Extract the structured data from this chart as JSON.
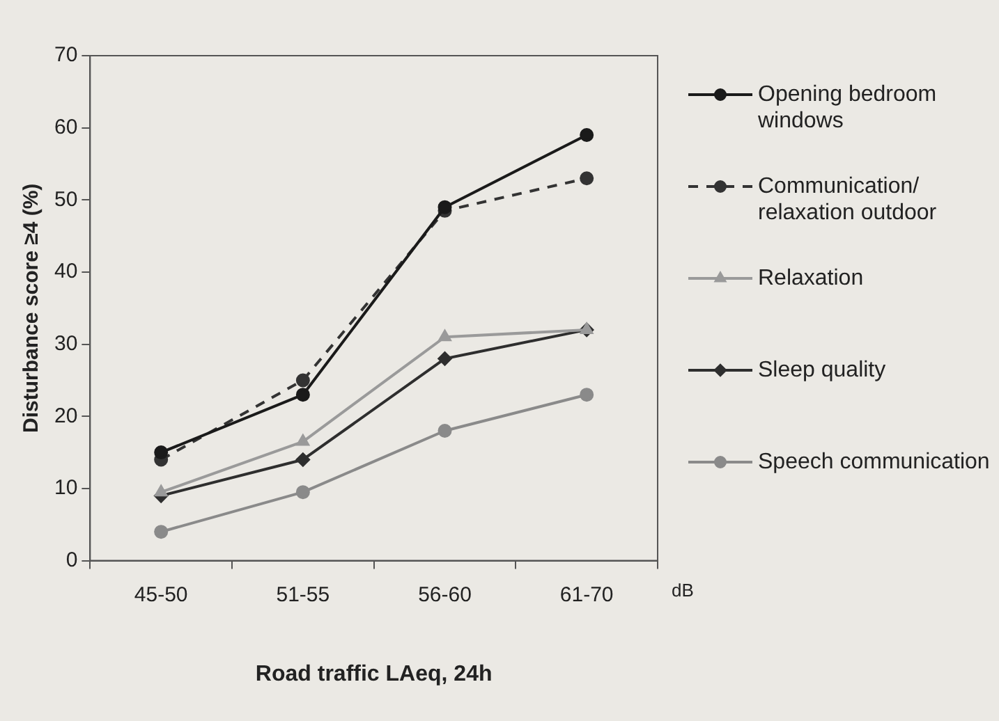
{
  "chart_data": {
    "type": "line",
    "xlabel": "Road traffic LAeq, 24h",
    "ylabel": "Disturbance score ≥4 (%)",
    "categories": [
      "45-50",
      "51-55",
      "56-60",
      "61-70"
    ],
    "series": [
      {
        "name": "Opening bedroom windows",
        "color": "#1a1a1a",
        "values": [
          15,
          23,
          49,
          59
        ],
        "marker": "circle",
        "line_style": "solid"
      },
      {
        "name": "Communication/ relaxation outdoor",
        "color": "#333333",
        "values": [
          14,
          25,
          48.5,
          53
        ],
        "marker": "circle",
        "line_style": "dashed"
      },
      {
        "name": "Relaxation",
        "color": "#9a9a9a",
        "values": [
          9.5,
          16.5,
          31,
          32
        ],
        "marker": "triangle",
        "line_style": "solid"
      },
      {
        "name": "Sleep quality",
        "color": "#2e2e2e",
        "values": [
          9,
          14,
          28,
          32
        ],
        "marker": "diamond",
        "line_style": "solid"
      },
      {
        "name": "Speech communication",
        "color": "#8a8a8a",
        "values": [
          4,
          9.5,
          18,
          23
        ],
        "marker": "circle",
        "line_style": "solid"
      }
    ],
    "ylim": [
      0,
      70
    ],
    "yticks": [
      0,
      10,
      20,
      30,
      40,
      50,
      60,
      70
    ],
    "grid": false,
    "legend": "right",
    "annotations": [
      "dB"
    ]
  }
}
